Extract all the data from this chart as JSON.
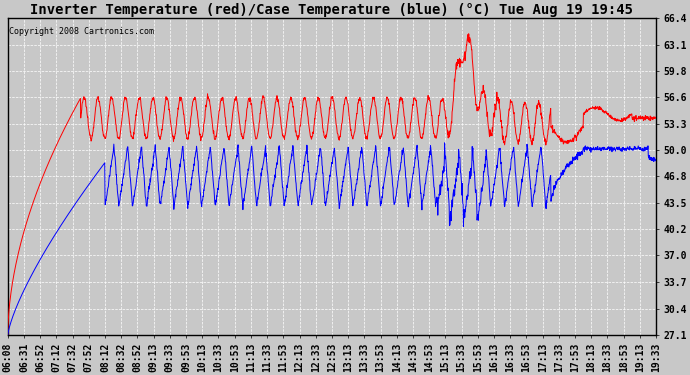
{
  "title": "Inverter Temperature (red)/Case Temperature (blue) (°C) Tue Aug 19 19:45",
  "copyright": "Copyright 2008 Cartronics.com",
  "yticks": [
    27.1,
    30.4,
    33.7,
    37.0,
    40.2,
    43.5,
    46.8,
    50.0,
    53.3,
    56.6,
    59.8,
    63.1,
    66.4
  ],
  "ylim": [
    27.1,
    66.4
  ],
  "xtick_labels": [
    "06:08",
    "06:31",
    "06:52",
    "07:12",
    "07:32",
    "07:52",
    "08:12",
    "08:32",
    "08:52",
    "09:13",
    "09:33",
    "09:53",
    "10:13",
    "10:33",
    "10:53",
    "11:13",
    "11:33",
    "11:53",
    "12:13",
    "12:33",
    "12:53",
    "13:13",
    "13:33",
    "13:53",
    "14:13",
    "14:33",
    "14:53",
    "15:13",
    "15:33",
    "15:53",
    "16:13",
    "16:33",
    "16:53",
    "17:13",
    "17:33",
    "17:53",
    "18:13",
    "18:33",
    "18:53",
    "19:13",
    "19:33"
  ],
  "bg_color": "#c8c8c8",
  "plot_bg_color": "#c8c8c8",
  "grid_color": "#ffffff",
  "red_color": "#ff0000",
  "blue_color": "#0000ff",
  "title_fontsize": 10,
  "tick_fontsize": 7
}
